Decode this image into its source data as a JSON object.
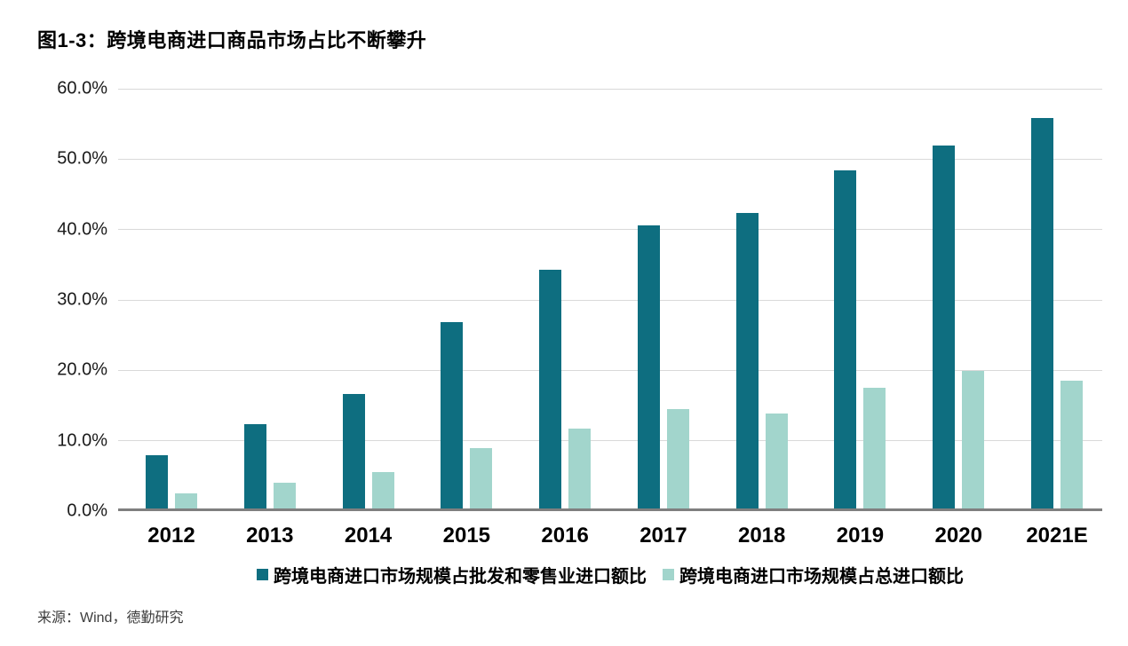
{
  "title": "图1-3：跨境电商进口商品市场占比不断攀升",
  "source": "来源：Wind，德勤研究",
  "colors": {
    "series_dark": "#0e6e80",
    "series_light": "#a2d5cc",
    "gridline": "#d9d9d9",
    "axis_line": "#7f7f7f",
    "title_text": "#000000",
    "source_text": "#3d3d3d"
  },
  "chart_data": {
    "type": "bar",
    "title": "图1-3：跨境电商进口商品市场占比不断攀升",
    "categories": [
      "2012",
      "2013",
      "2014",
      "2015",
      "2016",
      "2017",
      "2018",
      "2019",
      "2020",
      "2021E"
    ],
    "series": [
      {
        "name": "跨境电商进口市场规模占批发和零售业进口额比",
        "color": "#0e6e80",
        "values": [
          7.6,
          12.0,
          16.3,
          26.5,
          33.9,
          40.2,
          42.0,
          48.0,
          51.5,
          55.5
        ]
      },
      {
        "name": "跨境电商进口市场规模占总进口额比",
        "color": "#a2d5cc",
        "values": [
          2.1,
          3.7,
          5.2,
          8.6,
          11.3,
          14.1,
          13.5,
          17.2,
          19.5,
          18.2
        ]
      }
    ],
    "xlabel": "",
    "ylabel": "",
    "ylim": [
      0,
      60
    ],
    "yticks": [
      {
        "value": 0,
        "label": "0.0%"
      },
      {
        "value": 10,
        "label": "10.0%"
      },
      {
        "value": 20,
        "label": "20.0%"
      },
      {
        "value": 30,
        "label": "30.0%"
      },
      {
        "value": 40,
        "label": "40.0%"
      },
      {
        "value": 50,
        "label": "50.0%"
      },
      {
        "value": 60,
        "label": "60.0%"
      }
    ],
    "grid": true,
    "grid_axis": "y",
    "legend_position": "bottom"
  }
}
